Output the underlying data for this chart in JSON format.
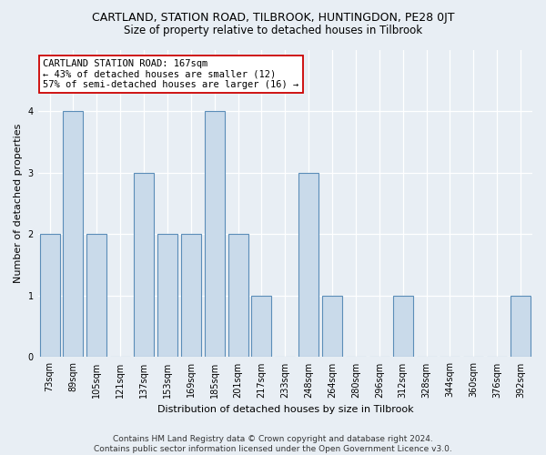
{
  "title": "CARTLAND, STATION ROAD, TILBROOK, HUNTINGDON, PE28 0JT",
  "subtitle": "Size of property relative to detached houses in Tilbrook",
  "xlabel": "Distribution of detached houses by size in Tilbrook",
  "ylabel": "Number of detached properties",
  "categories": [
    "73sqm",
    "89sqm",
    "105sqm",
    "121sqm",
    "137sqm",
    "153sqm",
    "169sqm",
    "185sqm",
    "201sqm",
    "217sqm",
    "233sqm",
    "248sqm",
    "264sqm",
    "280sqm",
    "296sqm",
    "312sqm",
    "328sqm",
    "344sqm",
    "360sqm",
    "376sqm",
    "392sqm"
  ],
  "values": [
    2,
    4,
    2,
    0,
    3,
    2,
    2,
    4,
    2,
    1,
    0,
    3,
    1,
    0,
    0,
    1,
    0,
    0,
    0,
    0,
    1
  ],
  "bar_color": "#c9daea",
  "bar_edge_color": "#5b8db8",
  "annotation_box_text": "CARTLAND STATION ROAD: 167sqm\n← 43% of detached houses are smaller (12)\n57% of semi-detached houses are larger (16) →",
  "annotation_box_color": "white",
  "annotation_box_edge_color": "#cc0000",
  "ylim": [
    0,
    5.0
  ],
  "yticks": [
    0,
    1,
    2,
    3,
    4
  ],
  "footer_line1": "Contains HM Land Registry data © Crown copyright and database right 2024.",
  "footer_line2": "Contains public sector information licensed under the Open Government Licence v3.0.",
  "fig_background": "#e8eef4",
  "plot_background": "#e8eef4",
  "title_fontsize": 9,
  "subtitle_fontsize": 8.5,
  "xlabel_fontsize": 8,
  "ylabel_fontsize": 8,
  "tick_fontsize": 7,
  "annotation_fontsize": 7.5,
  "footer_fontsize": 6.5
}
